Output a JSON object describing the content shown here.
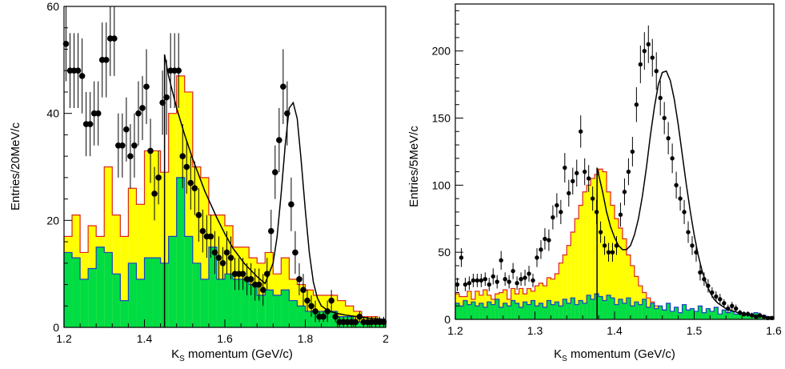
{
  "chart_data": [
    {
      "type": "histogram",
      "xlabel": "K",
      "xlabel_sub": "S",
      "xlabel_rest": " momentum (GeV/c)",
      "ylabel": "Entries/20MeV/c",
      "xlim": [
        1.2,
        2.0
      ],
      "ylim": [
        0,
        60
      ],
      "xticks": [
        1.2,
        1.4,
        1.6,
        1.8,
        2
      ],
      "xtick_labels": [
        "1.2",
        "1.4",
        "1.6",
        "1.8",
        "2"
      ],
      "yticks": [
        0,
        20,
        40,
        60
      ],
      "ytick_labels": [
        "0",
        "20",
        "40",
        "60"
      ],
      "grid": false,
      "bins": {
        "start": 1.2,
        "width": 0.02,
        "yellow": [
          17,
          21,
          14,
          19,
          17,
          30,
          21,
          17,
          26,
          23,
          33,
          33,
          29,
          40,
          47,
          44,
          30,
          28,
          21,
          21,
          19,
          15,
          15,
          13,
          12,
          14,
          10,
          13,
          9,
          8,
          7,
          6,
          6,
          6,
          5,
          4,
          3,
          2,
          2,
          1
        ],
        "green": [
          14,
          13,
          9,
          11,
          15,
          14,
          10,
          5,
          12,
          9,
          13,
          13,
          12,
          17,
          28,
          17,
          12,
          9,
          15,
          9,
          10,
          9,
          9,
          8,
          6,
          7,
          6,
          7,
          5,
          4,
          3,
          3,
          3,
          3,
          2,
          2,
          1,
          1,
          1,
          1
        ]
      },
      "points": {
        "x": [
          1.205,
          1.215,
          1.225,
          1.235,
          1.245,
          1.255,
          1.265,
          1.275,
          1.285,
          1.295,
          1.305,
          1.315,
          1.325,
          1.335,
          1.345,
          1.355,
          1.365,
          1.375,
          1.385,
          1.395,
          1.405,
          1.415,
          1.425,
          1.435,
          1.445,
          1.455,
          1.465,
          1.475,
          1.485,
          1.495,
          1.505,
          1.515,
          1.525,
          1.535,
          1.545,
          1.555,
          1.565,
          1.575,
          1.585,
          1.595,
          1.605,
          1.615,
          1.625,
          1.635,
          1.645,
          1.655,
          1.665,
          1.675,
          1.685,
          1.695,
          1.705,
          1.715,
          1.725,
          1.735,
          1.745,
          1.755,
          1.765,
          1.775,
          1.785,
          1.795,
          1.805,
          1.815,
          1.825,
          1.835,
          1.845,
          1.855,
          1.865,
          1.875,
          1.885,
          1.895,
          1.905,
          1.915,
          1.925,
          1.935,
          1.945,
          1.955,
          1.965,
          1.975,
          1.985,
          1.995
        ],
        "y": [
          53,
          48,
          48,
          48,
          47,
          38,
          38,
          40,
          40,
          50,
          50,
          54,
          54,
          34,
          34,
          37,
          32,
          34,
          40,
          41,
          45,
          33,
          25,
          28,
          42,
          43,
          48,
          48,
          48,
          32,
          30,
          27,
          26,
          21,
          18,
          17,
          17,
          14,
          13,
          12,
          14,
          13,
          10,
          10,
          10,
          9,
          9,
          8,
          8,
          7,
          10,
          18,
          29,
          35,
          45,
          40,
          23,
          14,
          9,
          7,
          5,
          4,
          3,
          2,
          2,
          3,
          5,
          2,
          1,
          1,
          1,
          1,
          1,
          2,
          1,
          1,
          1,
          1,
          1,
          1
        ],
        "err": [
          7,
          7,
          7,
          7,
          7,
          6,
          6,
          6,
          6,
          7,
          7,
          7,
          7,
          6,
          6,
          6,
          6,
          6,
          6,
          6,
          7,
          6,
          5,
          5,
          6,
          7,
          7,
          7,
          7,
          6,
          5,
          5,
          5,
          5,
          4,
          4,
          4,
          4,
          4,
          3,
          4,
          4,
          3,
          3,
          3,
          3,
          3,
          3,
          3,
          3,
          3,
          4,
          5,
          6,
          7,
          6,
          5,
          4,
          3,
          3,
          2,
          2,
          2,
          1,
          1,
          2,
          2,
          1,
          1,
          1,
          1,
          1,
          1,
          1,
          1,
          1,
          1,
          1,
          1,
          1
        ]
      },
      "fit_curve": {
        "x": [
          1.45,
          1.46,
          1.48,
          1.5,
          1.52,
          1.55,
          1.58,
          1.6,
          1.62,
          1.65,
          1.68,
          1.7,
          1.72,
          1.73,
          1.74,
          1.75,
          1.76,
          1.77,
          1.78,
          1.79,
          1.8,
          1.81,
          1.82,
          1.83,
          1.84,
          1.86,
          1.88,
          1.9,
          1.93,
          1.96,
          2.0
        ],
        "y": [
          51,
          47,
          41,
          36,
          31.5,
          25.5,
          20.5,
          17.5,
          14.8,
          11.8,
          9.5,
          8.2,
          12,
          17,
          25,
          34,
          41,
          42,
          39,
          31,
          22,
          14,
          8.5,
          5.5,
          4,
          3,
          2.6,
          2.3,
          2,
          1.7,
          1.5
        ]
      },
      "vline_x": 1.45
    },
    {
      "type": "histogram",
      "xlabel": "K",
      "xlabel_sub": "S",
      "xlabel_rest": " momentum (GeV/c)",
      "ylabel": "Entries/5MeV/c",
      "xlim": [
        1.2,
        1.6
      ],
      "ylim": [
        0,
        235
      ],
      "xticks": [
        1.2,
        1.3,
        1.4,
        1.5,
        1.6
      ],
      "xtick_labels": [
        "1.2",
        "1.3",
        "1.4",
        "1.5",
        "1.6"
      ],
      "yticks": [
        0,
        50,
        100,
        150,
        200
      ],
      "ytick_labels": [
        "0",
        "50",
        "100",
        "150",
        "200"
      ],
      "grid": false,
      "bins": {
        "start": 1.2,
        "width": 0.005,
        "yellow": [
          19,
          17,
          17,
          21,
          15,
          21,
          18,
          22,
          18,
          15,
          19,
          20,
          22,
          15,
          23,
          19,
          23,
          19,
          23,
          21,
          25,
          27,
          25,
          31,
          30,
          34,
          42,
          48,
          55,
          65,
          75,
          85,
          95,
          100,
          105,
          108,
          112,
          110,
          95,
          85,
          75,
          68,
          60,
          48,
          40,
          32,
          25,
          20,
          16,
          13,
          10,
          8,
          7,
          5,
          4,
          3,
          3,
          2,
          2,
          2,
          1,
          1,
          1,
          1,
          1,
          1,
          1,
          1,
          1,
          1,
          1,
          1,
          1,
          1,
          1,
          1,
          1,
          1,
          1,
          1
        ],
        "green": [
          12,
          10,
          14,
          11,
          13,
          10,
          12,
          9,
          13,
          11,
          15,
          9,
          12,
          10,
          14,
          12,
          9,
          13,
          11,
          14,
          10,
          12,
          9,
          14,
          11,
          13,
          10,
          15,
          12,
          16,
          11,
          14,
          12,
          18,
          15,
          19,
          17,
          14,
          18,
          16,
          11,
          15,
          12,
          16,
          10,
          13,
          11,
          15,
          9,
          12,
          8,
          10,
          7,
          12,
          6,
          9,
          5,
          11,
          7,
          8,
          6,
          10,
          5,
          8,
          6,
          9,
          4,
          7,
          5,
          6,
          4,
          5,
          3,
          4,
          3,
          5,
          2,
          3,
          2,
          2
        ]
      },
      "points": {
        "x": [
          1.2025,
          1.2075,
          1.2125,
          1.2175,
          1.2225,
          1.2275,
          1.2325,
          1.2375,
          1.2425,
          1.2475,
          1.2525,
          1.2575,
          1.2625,
          1.2675,
          1.2725,
          1.2775,
          1.2825,
          1.2875,
          1.2925,
          1.2975,
          1.3025,
          1.3075,
          1.3125,
          1.3175,
          1.3225,
          1.3275,
          1.3325,
          1.3375,
          1.3425,
          1.3475,
          1.3525,
          1.3575,
          1.3625,
          1.3675,
          1.3725,
          1.3775,
          1.3825,
          1.3875,
          1.3925,
          1.3975,
          1.4025,
          1.4075,
          1.4125,
          1.4175,
          1.4225,
          1.4275,
          1.4325,
          1.4375,
          1.4425,
          1.4475,
          1.4525,
          1.4575,
          1.4625,
          1.4675,
          1.4725,
          1.4775,
          1.4825,
          1.4875,
          1.4925,
          1.4975,
          1.5025,
          1.5075,
          1.5125,
          1.5175,
          1.5225,
          1.5275,
          1.5325,
          1.5375,
          1.5425,
          1.5475,
          1.5525,
          1.5575,
          1.5625,
          1.5675,
          1.5725,
          1.5775,
          1.5825,
          1.5875,
          1.5925,
          1.5975
        ],
        "y": [
          26,
          46,
          26,
          27,
          29,
          29,
          29,
          30,
          26,
          32,
          28,
          44,
          30,
          28,
          36,
          27,
          30,
          31,
          34,
          29,
          46,
          52,
          60,
          59,
          76,
          85,
          80,
          113,
          94,
          103,
          109,
          140,
          110,
          105,
          90,
          80,
          65,
          55,
          50,
          50,
          55,
          78,
          95,
          110,
          125,
          160,
          190,
          200,
          205,
          195,
          185,
          165,
          150,
          135,
          120,
          100,
          90,
          80,
          65,
          55,
          50,
          35,
          30,
          25,
          20,
          17,
          15,
          12,
          8,
          10,
          8,
          5,
          4,
          4,
          3,
          2,
          3,
          2,
          1,
          1
        ],
        "err": [
          5,
          7,
          5,
          5,
          5,
          5,
          5,
          5,
          5,
          6,
          5,
          7,
          5,
          5,
          6,
          5,
          5,
          6,
          6,
          5,
          7,
          7,
          8,
          8,
          9,
          9,
          9,
          11,
          10,
          10,
          10,
          12,
          10,
          10,
          9,
          9,
          8,
          7,
          7,
          7,
          7,
          9,
          10,
          10,
          11,
          13,
          14,
          14,
          14,
          14,
          14,
          13,
          12,
          12,
          11,
          10,
          9,
          9,
          8,
          7,
          7,
          6,
          5,
          5,
          4,
          4,
          4,
          3,
          3,
          3,
          3,
          2,
          2,
          2,
          2,
          1,
          2,
          1,
          1,
          1
        ]
      },
      "fit_curve": {
        "x": [
          1.378,
          1.385,
          1.39,
          1.395,
          1.4,
          1.405,
          1.41,
          1.415,
          1.42,
          1.425,
          1.43,
          1.435,
          1.44,
          1.445,
          1.45,
          1.455,
          1.46,
          1.465,
          1.47,
          1.475,
          1.48,
          1.485,
          1.49,
          1.495,
          1.5,
          1.505,
          1.51,
          1.515,
          1.52,
          1.525,
          1.53,
          1.54,
          1.55,
          1.56,
          1.57,
          1.58,
          1.6
        ],
        "y": [
          113,
          95,
          80,
          69,
          61,
          55,
          52,
          52,
          55,
          63,
          75,
          92,
          113,
          137,
          158,
          175,
          184,
          185,
          178,
          164,
          145,
          123,
          101,
          81,
          63,
          48,
          36,
          27,
          20,
          15,
          12,
          8,
          6,
          4,
          3,
          2,
          1.5
        ]
      },
      "vline_x": 1.378
    }
  ]
}
